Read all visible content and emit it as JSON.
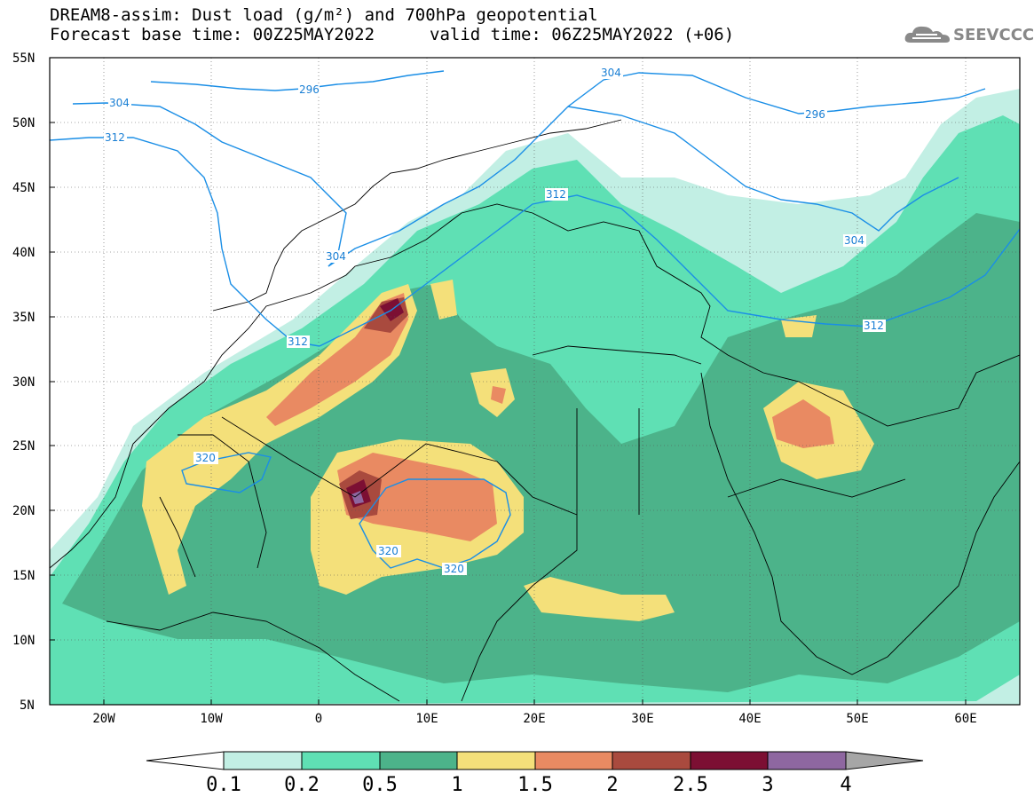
{
  "header": {
    "line1": "DREAM8-assim: Dust load (g/m²) and 700hPa geopotential",
    "line2_left": "Forecast base time: 00Z25MAY2022",
    "line2_right": "valid time: 06Z25MAY2022 (+06)",
    "logo_text": "SEEVCCC",
    "logo_icon": "cloud-icon"
  },
  "axes": {
    "lat_labels": [
      "55N",
      "50N",
      "45N",
      "40N",
      "35N",
      "30N",
      "25N",
      "20N",
      "15N",
      "10N",
      "5N"
    ],
    "lon_labels": [
      "20W",
      "10W",
      "0",
      "10E",
      "20E",
      "30E",
      "40E",
      "50E",
      "60E"
    ],
    "lon_range": [
      -25,
      65
    ],
    "lat_range": [
      5,
      55
    ],
    "grid": true
  },
  "geopotential_contours": [
    "296",
    "304",
    "304",
    "312",
    "304",
    "312",
    "304",
    "312",
    "312",
    "320",
    "320",
    "320",
    "296",
    "304"
  ],
  "colorbar": {
    "labels": [
      "0.1",
      "0.2",
      "0.5",
      "1",
      "1.5",
      "2",
      "2.5",
      "3",
      "4"
    ],
    "colors": [
      "#ffffff",
      "#c2efe4",
      "#5fe0b4",
      "#4cb38a",
      "#f4e07a",
      "#e98a62",
      "#a94a3e",
      "#7c0f33",
      "#8e67a0",
      "#a6a6a6"
    ]
  }
}
